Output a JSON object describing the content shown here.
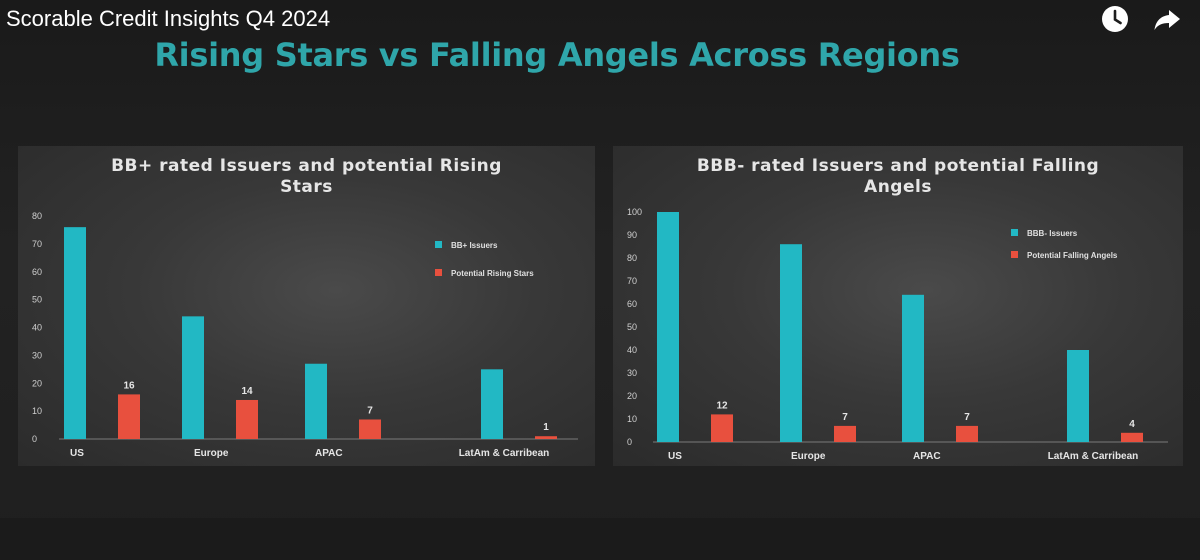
{
  "header": {
    "video_title": "Scorable Credit Insights Q4 2024",
    "icons": [
      "clock-icon",
      "share-icon"
    ]
  },
  "slide": {
    "title": "Rising Stars vs Falling Angels Across Regions"
  },
  "colors": {
    "teal": "#22b8c4",
    "red": "#e8503e",
    "title_teal": "#2fa6aa"
  },
  "chart_data": [
    {
      "type": "bar",
      "title_line1": "BB+ rated Issuers and potential Rising",
      "title_line2": "Stars",
      "categories": [
        "US",
        "Europe",
        "APAC",
        "LatAm & Carribean"
      ],
      "series": [
        {
          "name": "BB+ Issuers",
          "values": [
            76,
            44,
            27,
            25
          ],
          "color": "#22b8c4"
        },
        {
          "name": "Potential Rising Stars",
          "values": [
            16,
            14,
            7,
            1
          ],
          "color": "#e8503e",
          "data_labels": [
            "16",
            "14",
            "7",
            "1"
          ]
        }
      ],
      "ylim": [
        0,
        80
      ],
      "yticks": [
        "0",
        "10",
        "20",
        "30",
        "40",
        "50",
        "60",
        "70",
        "80"
      ],
      "legend": "right",
      "grid": false
    },
    {
      "type": "bar",
      "title_line1": "BBB- rated Issuers and potential Falling",
      "title_line2": "Angels",
      "categories": [
        "US",
        "Europe",
        "APAC",
        "LatAm & Carribean"
      ],
      "series": [
        {
          "name": "BBB- Issuers",
          "values": [
            100,
            86,
            64,
            40
          ],
          "color": "#22b8c4"
        },
        {
          "name": "Potential Falling Angels",
          "values": [
            12,
            7,
            7,
            4
          ],
          "color": "#e8503e",
          "data_labels": [
            "12",
            "7",
            "7",
            "4"
          ]
        }
      ],
      "ylim": [
        0,
        100
      ],
      "yticks": [
        "0",
        "10",
        "20",
        "30",
        "40",
        "50",
        "60",
        "70",
        "80",
        "90",
        "100"
      ],
      "legend": "right",
      "grid": false
    }
  ]
}
